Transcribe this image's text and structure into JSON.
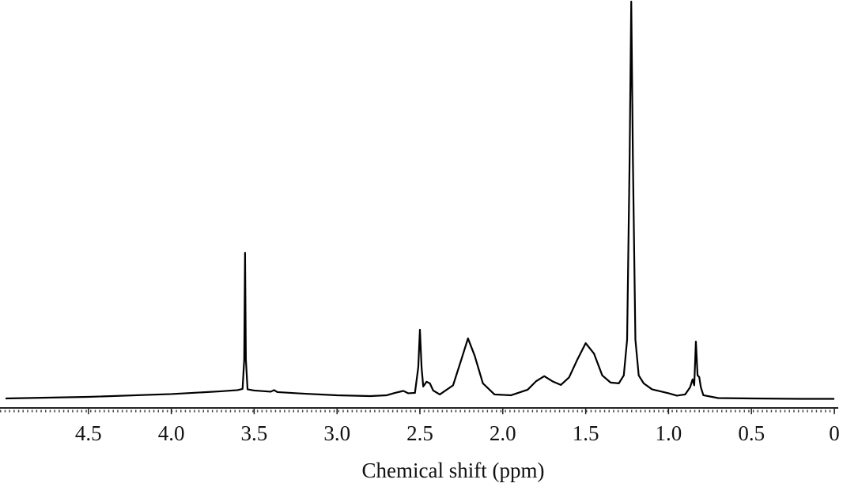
{
  "chart_data": {
    "type": "line",
    "x_label": "Chemical shift (ppm)",
    "xlim": [
      5.0,
      0
    ],
    "ylim": [
      0,
      100
    ],
    "xticks": [
      4.5,
      {
        "value": 4,
        "label": "4.0"
      },
      3.5,
      {
        "value": 3,
        "label": "3.0"
      },
      2.5,
      {
        "value": 2,
        "label": "2.0"
      },
      1.5,
      {
        "value": 1,
        "label": "1.0"
      },
      0.5,
      0
    ],
    "series": [
      {
        "color": "#000000",
        "x": [
          5.0,
          4.5,
          4.0,
          3.7,
          3.6,
          3.57,
          3.56,
          3.555,
          3.55,
          3.54,
          3.5,
          3.4,
          3.38,
          3.36,
          3.2,
          3.0,
          2.8,
          2.7,
          2.65,
          2.6,
          2.57,
          2.53,
          2.51,
          2.5,
          2.49,
          2.48,
          2.46,
          2.44,
          2.42,
          2.38,
          2.3,
          2.25,
          2.21,
          2.17,
          2.12,
          2.05,
          1.95,
          1.85,
          1.8,
          1.75,
          1.7,
          1.65,
          1.6,
          1.55,
          1.5,
          1.45,
          1.4,
          1.35,
          1.3,
          1.27,
          1.25,
          1.235,
          1.225,
          1.215,
          1.2,
          1.18,
          1.15,
          1.1,
          1.0,
          0.95,
          0.9,
          0.87,
          0.855,
          0.845,
          0.835,
          0.825,
          0.815,
          0.805,
          0.79,
          0.7,
          0.5,
          0.2,
          0.0
        ],
        "values": [
          0.2,
          0.6,
          1.3,
          2.0,
          2.3,
          2.6,
          10,
          36.8,
          10,
          2.5,
          2.2,
          1.9,
          2.3,
          1.8,
          1.4,
          1.0,
          0.8,
          1.0,
          1.6,
          2.1,
          1.5,
          1.6,
          8,
          17.5,
          8,
          3.2,
          4.4,
          4.0,
          2.2,
          1.2,
          3.5,
          10,
          15.3,
          11,
          4,
          1.2,
          1.0,
          2.4,
          4.5,
          5.8,
          4.5,
          3.6,
          5.5,
          10,
          14.1,
          11.5,
          6,
          4.2,
          4,
          6,
          15,
          60,
          100,
          60,
          15,
          6,
          4,
          2.5,
          1.5,
          0.9,
          1.2,
          3,
          5.0,
          3.5,
          14.5,
          6,
          5.6,
          3,
          1,
          0.3,
          0.2,
          0.1,
          0.1
        ]
      }
    ]
  }
}
